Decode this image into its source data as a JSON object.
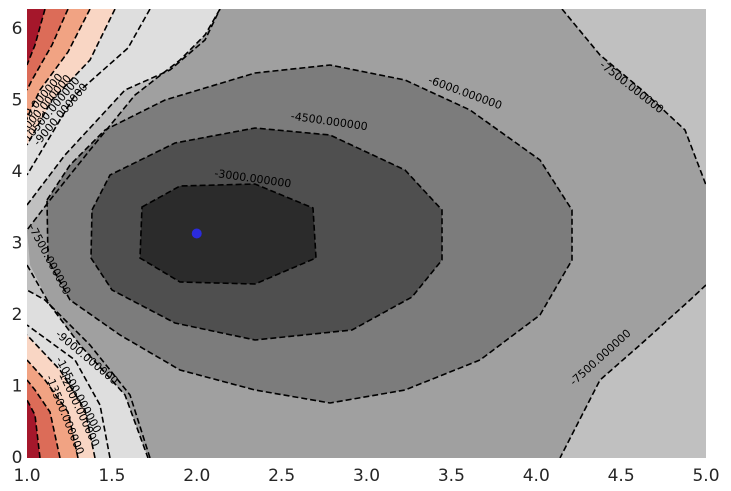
{
  "chart_data": {
    "type": "contour",
    "title": "",
    "xlabel": "",
    "ylabel": "",
    "xlim": [
      1.0,
      5.0
    ],
    "ylim": [
      0,
      6.28
    ],
    "x_ticks": [
      "1.0",
      "1.5",
      "2.0",
      "2.5",
      "3.0",
      "3.5",
      "4.0",
      "4.5",
      "5.0"
    ],
    "y_ticks": [
      "0",
      "1",
      "2",
      "3",
      "4",
      "5",
      "6"
    ],
    "grid": false,
    "colormap": "grey levels near the minimum, red tones at high levels",
    "contour_levels": [
      -3000,
      -4500,
      -6000,
      -7500,
      -9000,
      -10500,
      -12000,
      -13500
    ],
    "contour_labels": [
      {
        "text": "-3000.000000",
        "x": 2.33,
        "y": 3.9
      },
      {
        "text": "-4500.000000",
        "x": 2.78,
        "y": 4.7
      },
      {
        "text": "-6000.000000",
        "x": 3.58,
        "y": 5.1
      },
      {
        "text": "-7500.000000",
        "x": 4.56,
        "y": 5.18
      },
      {
        "text": "-7500.000000",
        "x": 1.13,
        "y": 2.77
      },
      {
        "text": "-7500.000000",
        "x": 4.38,
        "y": 1.4
      },
      {
        "text": "-9000.000000",
        "x": 1.2,
        "y": 4.8
      },
      {
        "text": "-10500.000000",
        "x": 1.14,
        "y": 4.85
      },
      {
        "text": "-12000.000000",
        "x": 1.09,
        "y": 4.88
      },
      {
        "text": "-13500.000000",
        "x": 1.04,
        "y": 4.9
      },
      {
        "text": "-9000.000000",
        "x": 1.35,
        "y": 1.4
      },
      {
        "text": "-10500.000000",
        "x": 1.3,
        "y": 0.88
      },
      {
        "text": "-12000.000000",
        "x": 1.3,
        "y": 0.7
      },
      {
        "text": "-13500.000000",
        "x": 1.22,
        "y": 0.6
      }
    ],
    "marker": {
      "x": 2.0,
      "y": 3.14,
      "color": "#2b2bdc"
    }
  }
}
